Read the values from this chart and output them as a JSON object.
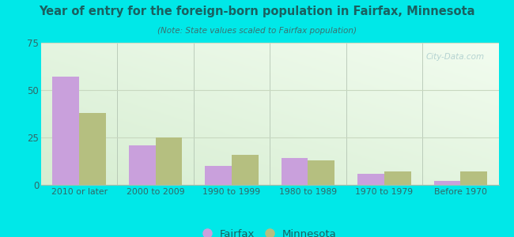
{
  "title": "Year of entry for the foreign-born population in Fairfax, Minnesota",
  "subtitle": "(Note: State values scaled to Fairfax population)",
  "categories": [
    "2010 or later",
    "2000 to 2009",
    "1990 to 1999",
    "1980 to 1989",
    "1970 to 1979",
    "Before 1970"
  ],
  "fairfax_values": [
    57,
    21,
    10,
    14,
    6,
    2
  ],
  "minnesota_values": [
    38,
    25,
    16,
    13,
    7,
    7
  ],
  "fairfax_color": "#c9a0dc",
  "minnesota_color": "#b5bf80",
  "ylim": [
    0,
    75
  ],
  "yticks": [
    0,
    25,
    50,
    75
  ],
  "bar_width": 0.35,
  "outer_bg": "#00e8e8",
  "grid_color": "#c8d8c0",
  "title_color": "#1a6060",
  "subtitle_color": "#3a7070",
  "tick_color": "#336666",
  "watermark": "City-Data.com",
  "watermark_color": "#aacccc"
}
